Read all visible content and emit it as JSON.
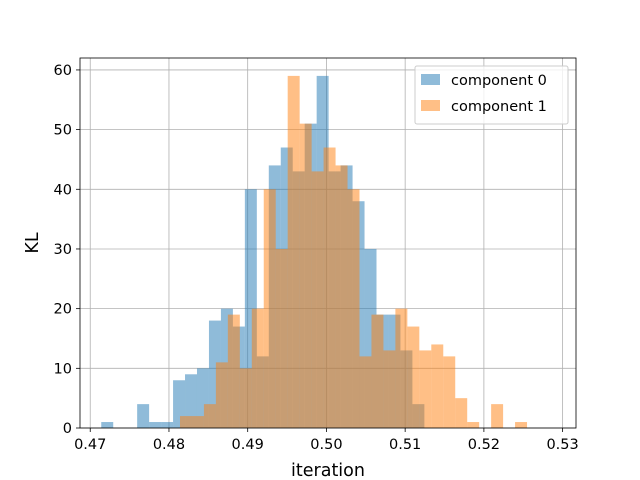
{
  "chart_data": {
    "type": "histogram",
    "title": "",
    "xlabel": "iteration",
    "ylabel": "KL",
    "xlim": [
      0.4687,
      0.5317
    ],
    "ylim": [
      0,
      62
    ],
    "xticks": [
      0.47,
      0.48,
      0.49,
      0.5,
      0.51,
      0.52,
      0.53
    ],
    "xtick_labels": [
      "0.47",
      "0.48",
      "0.49",
      "0.50",
      "0.51",
      "0.52",
      "0.53"
    ],
    "yticks": [
      0,
      10,
      20,
      30,
      40,
      50,
      60
    ],
    "ytick_labels": [
      "0",
      "10",
      "20",
      "30",
      "40",
      "50",
      "60"
    ],
    "grid": true,
    "legend_position": "upper-right",
    "series": [
      {
        "name": "component 0",
        "color": "#1f77b4",
        "alpha": 0.5,
        "bin_start": 0.4714,
        "bin_width": 0.00152,
        "counts": [
          1,
          0,
          0,
          4,
          1,
          1,
          8,
          9,
          10,
          18,
          20,
          17,
          40,
          12,
          44,
          47,
          43,
          51,
          59,
          43,
          44,
          38,
          30,
          19,
          19,
          13,
          4,
          0,
          0,
          0,
          0,
          0,
          0,
          0,
          0,
          0,
          0,
          0
        ]
      },
      {
        "name": "component 1",
        "color": "#ff7f0e",
        "alpha": 0.5,
        "bin_start": 0.4814,
        "bin_width": 0.00152,
        "counts": [
          2,
          2,
          4,
          11,
          19,
          10,
          20,
          40,
          30,
          59,
          51,
          43,
          47,
          44,
          40,
          12,
          19,
          13,
          20,
          17,
          13,
          14,
          12,
          5,
          1,
          0,
          4,
          0,
          1
        ]
      }
    ]
  }
}
